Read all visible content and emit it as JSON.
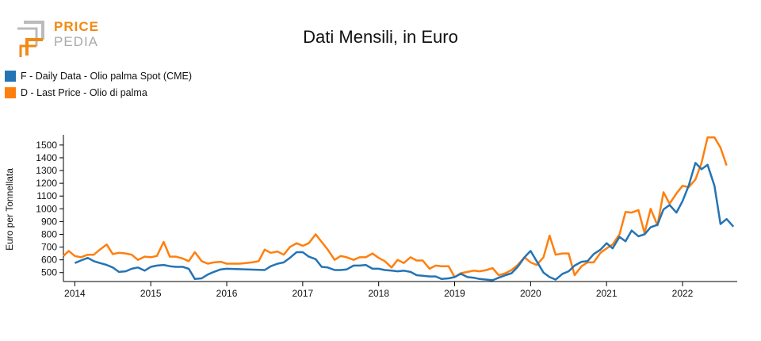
{
  "logo": {
    "line1": "PRICE",
    "line2": "PEDIA"
  },
  "colors": {
    "series1": "#2474b5",
    "series2": "#ff7f0e",
    "logo_orange": "#f08a14",
    "logo_gray": "#aaaaaa"
  },
  "chart_data": {
    "type": "line",
    "title": "Dati Mensili, in Euro",
    "ylabel": "Euro per Tonnellata",
    "xlabel": "",
    "ylim": [
      430,
      1580
    ],
    "yticks": [
      500,
      600,
      700,
      800,
      900,
      1000,
      1100,
      1200,
      1300,
      1400,
      1500
    ],
    "xlim": [
      2013.85,
      2022.72
    ],
    "xticks": [
      "2014",
      "2015",
      "2016",
      "2017",
      "2018",
      "2019",
      "2020",
      "2021",
      "2022"
    ],
    "legend_position": "top-left",
    "series": [
      {
        "name": "F - Daily Data - Olio palma Spot (CME)",
        "color": "#2474b5",
        "points": [
          [
            2014.0,
            575
          ],
          [
            2014.08,
            595
          ],
          [
            2014.17,
            615
          ],
          [
            2014.25,
            590
          ],
          [
            2014.33,
            575
          ],
          [
            2014.42,
            560
          ],
          [
            2014.5,
            540
          ],
          [
            2014.58,
            505
          ],
          [
            2014.67,
            510
          ],
          [
            2014.75,
            530
          ],
          [
            2014.83,
            540
          ],
          [
            2014.92,
            515
          ],
          [
            2015.0,
            545
          ],
          [
            2015.08,
            555
          ],
          [
            2015.17,
            560
          ],
          [
            2015.25,
            550
          ],
          [
            2015.33,
            545
          ],
          [
            2015.42,
            545
          ],
          [
            2015.5,
            530
          ],
          [
            2015.58,
            450
          ],
          [
            2015.67,
            455
          ],
          [
            2015.75,
            485
          ],
          [
            2015.83,
            505
          ],
          [
            2015.92,
            525
          ],
          [
            2016.0,
            530
          ],
          [
            2016.5,
            520
          ],
          [
            2016.58,
            550
          ],
          [
            2016.67,
            570
          ],
          [
            2016.75,
            580
          ],
          [
            2016.83,
            615
          ],
          [
            2016.92,
            660
          ],
          [
            2017.0,
            660
          ],
          [
            2017.08,
            625
          ],
          [
            2017.17,
            605
          ],
          [
            2017.25,
            545
          ],
          [
            2017.33,
            540
          ],
          [
            2017.42,
            520
          ],
          [
            2017.5,
            520
          ],
          [
            2017.58,
            525
          ],
          [
            2017.67,
            555
          ],
          [
            2017.75,
            555
          ],
          [
            2017.83,
            560
          ],
          [
            2017.92,
            530
          ],
          [
            2018.0,
            530
          ],
          [
            2018.08,
            520
          ],
          [
            2018.17,
            515
          ],
          [
            2018.25,
            510
          ],
          [
            2018.33,
            515
          ],
          [
            2018.42,
            505
          ],
          [
            2018.5,
            480
          ],
          [
            2018.58,
            475
          ],
          [
            2018.67,
            470
          ],
          [
            2018.75,
            470
          ],
          [
            2018.83,
            450
          ],
          [
            2018.92,
            455
          ],
          [
            2019.0,
            465
          ],
          [
            2019.08,
            490
          ],
          [
            2019.17,
            465
          ],
          [
            2019.25,
            460
          ],
          [
            2019.33,
            450
          ],
          [
            2019.42,
            445
          ],
          [
            2019.5,
            440
          ],
          [
            2019.58,
            460
          ],
          [
            2019.67,
            480
          ],
          [
            2019.75,
            495
          ],
          [
            2019.83,
            545
          ],
          [
            2019.92,
            620
          ],
          [
            2020.0,
            670
          ],
          [
            2020.08,
            590
          ],
          [
            2020.17,
            500
          ],
          [
            2020.25,
            465
          ],
          [
            2020.33,
            445
          ],
          [
            2020.42,
            490
          ],
          [
            2020.5,
            510
          ],
          [
            2020.58,
            555
          ],
          [
            2020.67,
            585
          ],
          [
            2020.75,
            590
          ],
          [
            2020.83,
            645
          ],
          [
            2020.92,
            680
          ],
          [
            2021.0,
            730
          ],
          [
            2021.08,
            690
          ],
          [
            2021.17,
            780
          ],
          [
            2021.25,
            745
          ],
          [
            2021.33,
            830
          ],
          [
            2021.42,
            785
          ],
          [
            2021.5,
            800
          ],
          [
            2021.58,
            855
          ],
          [
            2021.67,
            875
          ],
          [
            2021.75,
            995
          ],
          [
            2021.83,
            1030
          ],
          [
            2021.92,
            970
          ],
          [
            2022.0,
            1060
          ],
          [
            2022.08,
            1180
          ],
          [
            2022.17,
            1360
          ],
          [
            2022.25,
            1310
          ],
          [
            2022.33,
            1345
          ],
          [
            2022.42,
            1180
          ],
          [
            2022.5,
            880
          ],
          [
            2022.58,
            920
          ],
          [
            2022.67,
            860
          ]
        ]
      },
      {
        "name": "D - Last Price - Olio di palma",
        "color": "#ff7f0e",
        "points": [
          [
            2013.85,
            630
          ],
          [
            2013.92,
            670
          ],
          [
            2014.0,
            630
          ],
          [
            2014.08,
            620
          ],
          [
            2014.17,
            640
          ],
          [
            2014.25,
            640
          ],
          [
            2014.33,
            680
          ],
          [
            2014.42,
            720
          ],
          [
            2014.5,
            645
          ],
          [
            2014.58,
            655
          ],
          [
            2014.67,
            650
          ],
          [
            2014.75,
            640
          ],
          [
            2014.83,
            600
          ],
          [
            2014.92,
            625
          ],
          [
            2015.0,
            620
          ],
          [
            2015.08,
            630
          ],
          [
            2015.17,
            740
          ],
          [
            2015.25,
            625
          ],
          [
            2015.33,
            625
          ],
          [
            2015.42,
            610
          ],
          [
            2015.5,
            590
          ],
          [
            2015.58,
            660
          ],
          [
            2015.67,
            590
          ],
          [
            2015.75,
            570
          ],
          [
            2015.83,
            580
          ],
          [
            2015.92,
            585
          ],
          [
            2016.0,
            570
          ],
          [
            2016.08,
            570
          ],
          [
            2016.17,
            570
          ],
          [
            2016.25,
            575
          ],
          [
            2016.33,
            580
          ],
          [
            2016.42,
            590
          ],
          [
            2016.5,
            680
          ],
          [
            2016.58,
            655
          ],
          [
            2016.67,
            665
          ],
          [
            2016.75,
            640
          ],
          [
            2016.83,
            700
          ],
          [
            2016.92,
            730
          ],
          [
            2017.0,
            710
          ],
          [
            2017.08,
            730
          ],
          [
            2017.17,
            800
          ],
          [
            2017.25,
            740
          ],
          [
            2017.33,
            680
          ],
          [
            2017.42,
            600
          ],
          [
            2017.5,
            630
          ],
          [
            2017.58,
            620
          ],
          [
            2017.67,
            600
          ],
          [
            2017.75,
            620
          ],
          [
            2017.83,
            620
          ],
          [
            2017.92,
            650
          ],
          [
            2018.0,
            615
          ],
          [
            2018.08,
            590
          ],
          [
            2018.17,
            540
          ],
          [
            2018.25,
            600
          ],
          [
            2018.33,
            575
          ],
          [
            2018.42,
            620
          ],
          [
            2018.5,
            595
          ],
          [
            2018.58,
            595
          ],
          [
            2018.67,
            530
          ],
          [
            2018.75,
            555
          ],
          [
            2018.83,
            550
          ],
          [
            2018.92,
            550
          ],
          [
            2019.0,
            465
          ],
          [
            2019.08,
            495
          ],
          [
            2019.17,
            505
          ],
          [
            2019.25,
            515
          ],
          [
            2019.33,
            510
          ],
          [
            2019.42,
            520
          ],
          [
            2019.5,
            535
          ],
          [
            2019.58,
            480
          ],
          [
            2019.67,
            495
          ],
          [
            2019.75,
            520
          ],
          [
            2019.83,
            560
          ],
          [
            2019.92,
            620
          ],
          [
            2020.0,
            580
          ],
          [
            2020.08,
            560
          ],
          [
            2020.17,
            620
          ],
          [
            2020.25,
            790
          ],
          [
            2020.33,
            640
          ],
          [
            2020.42,
            650
          ],
          [
            2020.5,
            650
          ],
          [
            2020.58,
            480
          ],
          [
            2020.67,
            550
          ],
          [
            2020.75,
            580
          ],
          [
            2020.83,
            580
          ],
          [
            2020.92,
            655
          ],
          [
            2021.0,
            690
          ],
          [
            2021.08,
            720
          ],
          [
            2021.17,
            800
          ],
          [
            2021.25,
            975
          ],
          [
            2021.33,
            970
          ],
          [
            2021.42,
            990
          ],
          [
            2021.5,
            810
          ],
          [
            2021.58,
            1000
          ],
          [
            2021.67,
            870
          ],
          [
            2021.75,
            1130
          ],
          [
            2021.83,
            1040
          ],
          [
            2021.92,
            1120
          ],
          [
            2022.0,
            1180
          ],
          [
            2022.08,
            1170
          ],
          [
            2022.17,
            1230
          ],
          [
            2022.25,
            1360
          ],
          [
            2022.33,
            1560
          ],
          [
            2022.42,
            1560
          ],
          [
            2022.5,
            1480
          ],
          [
            2022.58,
            1340
          ]
        ]
      }
    ]
  }
}
